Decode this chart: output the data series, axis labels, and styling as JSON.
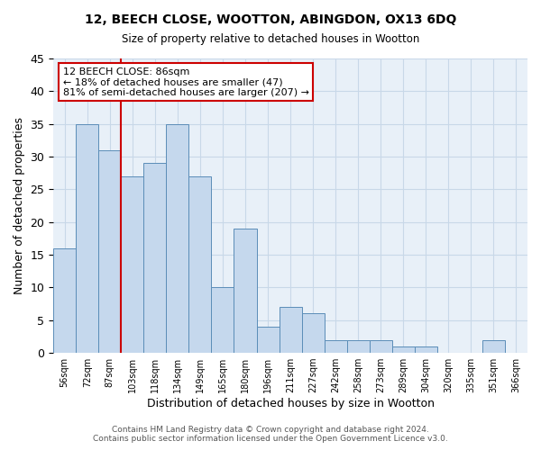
{
  "title1": "12, BEECH CLOSE, WOOTTON, ABINGDON, OX13 6DQ",
  "title2": "Size of property relative to detached houses in Wootton",
  "xlabel": "Distribution of detached houses by size in Wootton",
  "ylabel": "Number of detached properties",
  "categories": [
    "56sqm",
    "72sqm",
    "87sqm",
    "103sqm",
    "118sqm",
    "134sqm",
    "149sqm",
    "165sqm",
    "180sqm",
    "196sqm",
    "211sqm",
    "227sqm",
    "242sqm",
    "258sqm",
    "273sqm",
    "289sqm",
    "304sqm",
    "320sqm",
    "335sqm",
    "351sqm",
    "366sqm"
  ],
  "values": [
    16,
    35,
    31,
    27,
    29,
    35,
    27,
    10,
    19,
    4,
    7,
    6,
    2,
    2,
    2,
    1,
    1,
    0,
    0,
    2,
    0
  ],
  "bar_color": "#c5d8ed",
  "bar_edge_color": "#5b8db8",
  "highlight_index": 2,
  "highlight_line_color": "#cc0000",
  "ylim": [
    0,
    45
  ],
  "yticks": [
    0,
    5,
    10,
    15,
    20,
    25,
    30,
    35,
    40,
    45
  ],
  "annotation_title": "12 BEECH CLOSE: 86sqm",
  "annotation_line1": "← 18% of detached houses are smaller (47)",
  "annotation_line2": "81% of semi-detached houses are larger (207) →",
  "annotation_box_color": "#cc0000",
  "footer1": "Contains HM Land Registry data © Crown copyright and database right 2024.",
  "footer2": "Contains public sector information licensed under the Open Government Licence v3.0.",
  "grid_color": "#c8d8e8",
  "background_color": "#e8f0f8"
}
